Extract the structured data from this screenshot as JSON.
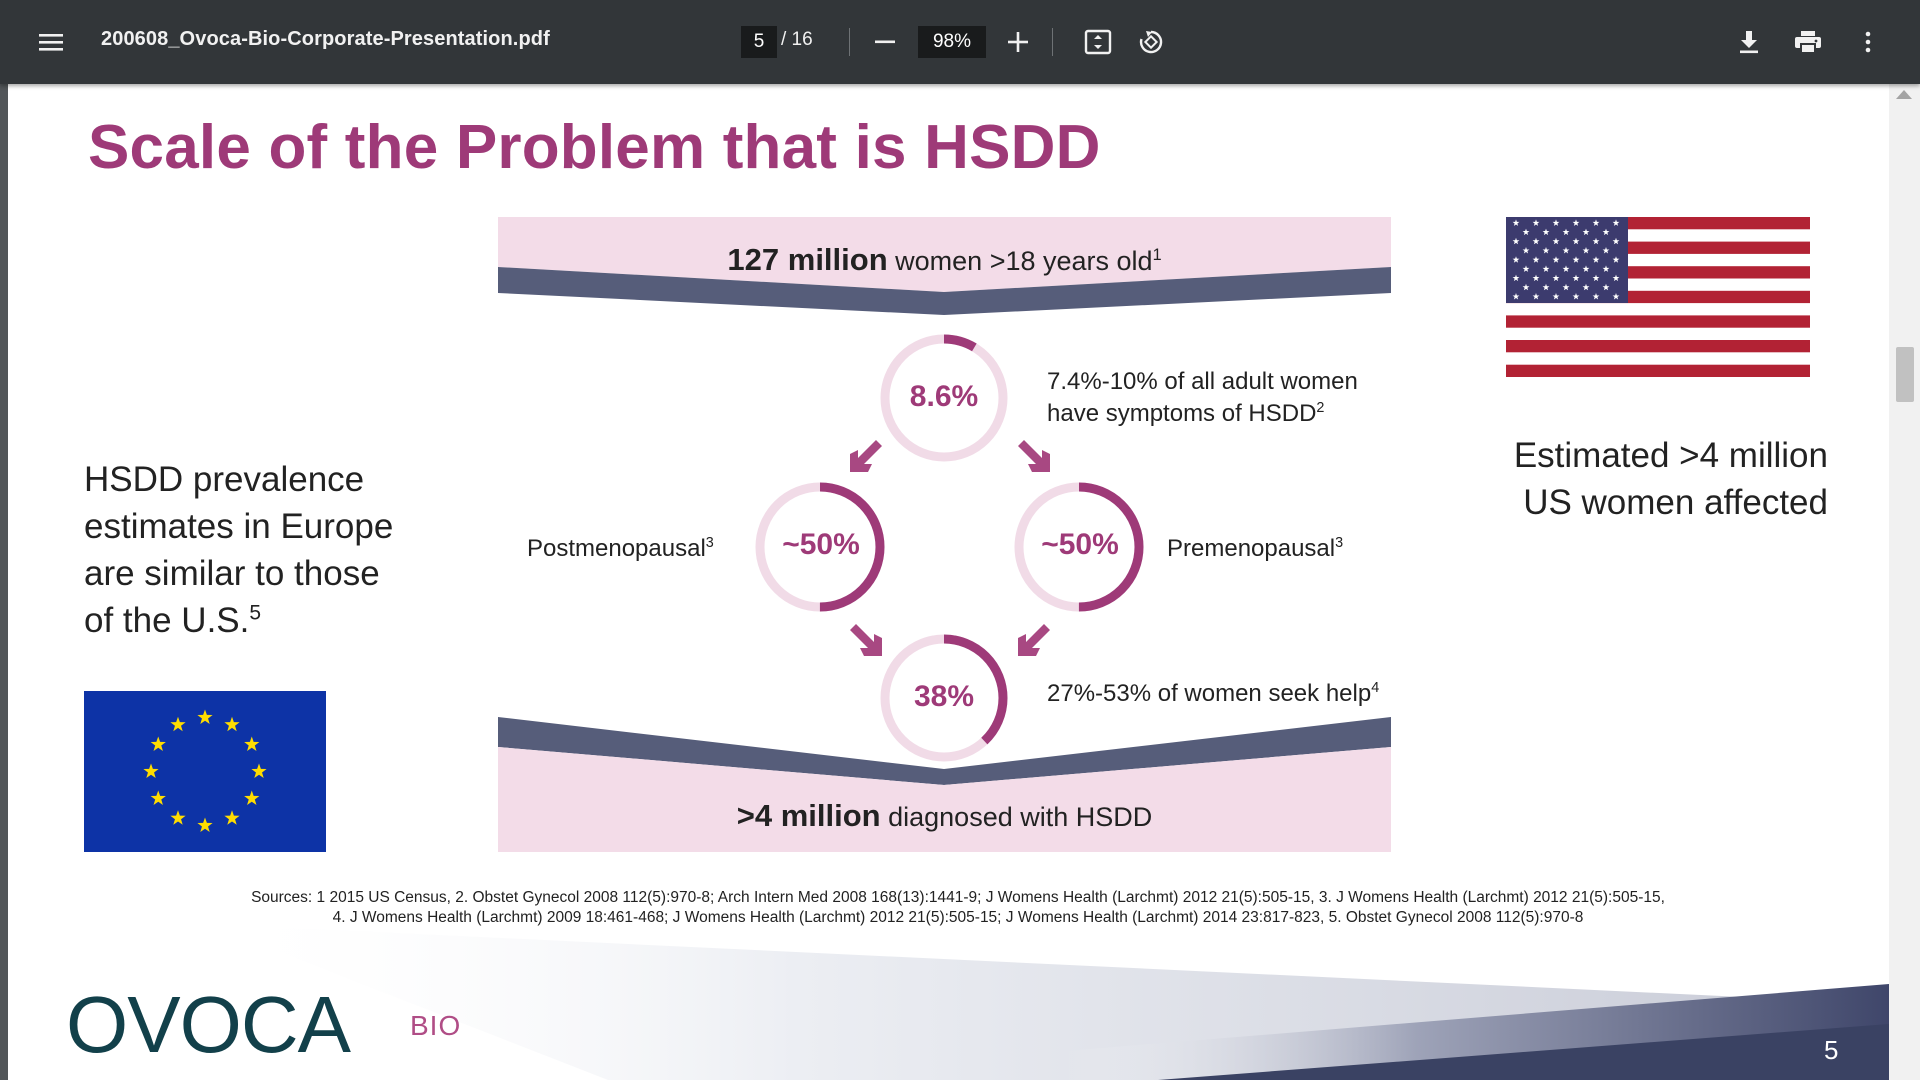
{
  "toolbar": {
    "menu_icon": "hamburger-menu-icon",
    "filename": "200608_Ovoca-Bio-Corporate-Presentation.pdf",
    "current_page": "5",
    "page_total": "/ 16",
    "zoom": "98%",
    "zoom_out_icon": "minus-icon",
    "zoom_in_icon": "plus-icon",
    "fit_icon": "fit-page-icon",
    "rotate_icon": "rotate-icon",
    "download_icon": "download-icon",
    "print_icon": "print-icon",
    "more_icon": "more-vertical-icon"
  },
  "slide": {
    "title": "Scale of the Problem that is HSDD",
    "top_band": {
      "bold": "127 million",
      "text": " women >18 years old",
      "sup": "1"
    },
    "rings": {
      "top": {
        "label": "8.6%",
        "value": 0.086
      },
      "left": {
        "label": "~50%",
        "value": 0.5
      },
      "right": {
        "label": "~50%",
        "value": 0.5
      },
      "bottom": {
        "label": "38%",
        "value": 0.38
      }
    },
    "note_top_line1": "7.4%-10% of all adult women",
    "note_top_line2": "have symptoms of HSDD",
    "note_top_sup": "2",
    "note_left": "Postmenopausal",
    "note_left_sup": "3",
    "note_right": "Premenopausal",
    "note_right_sup": "3",
    "note_bottom": "27%-53% of women seek help",
    "note_bottom_sup": "4",
    "bottom_band": {
      "bold": ">4 million",
      "text": " diagnosed with HSDD"
    },
    "europe_lines": [
      "HSDD prevalence",
      "estimates in Europe",
      "are similar to those",
      "of the U.S."
    ],
    "europe_sup": "5",
    "us_lines": [
      "Estimated >4 million",
      "US women affected"
    ],
    "sources_line1": "Sources: 1 2015 US Census, 2. Obstet Gynecol 2008 112(5):970-8; Arch Intern Med 2008 168(13):1441-9; J Womens Health (Larchmt) 2012 21(5):505-15,  3. J Womens Health (Larchmt) 2012 21(5):505-15,",
    "sources_line2": "4. J Womens Health (Larchmt) 2009 18:461-468; J Womens Health (Larchmt) 2012 21(5):505-15; J Womens Health (Larchmt) 2014 23:817-823, 5. Obstet Gynecol 2008 112(5):970-8",
    "logo_text": "OVOCA",
    "logo_suffix": "BIO",
    "page_number": "5"
  },
  "colors": {
    "accent": "#9e3a78",
    "ring_track": "#f1dbe7",
    "band_pink": "#f3dce8",
    "band_dark": "#565d7a",
    "logo_dark": "#12404a"
  }
}
